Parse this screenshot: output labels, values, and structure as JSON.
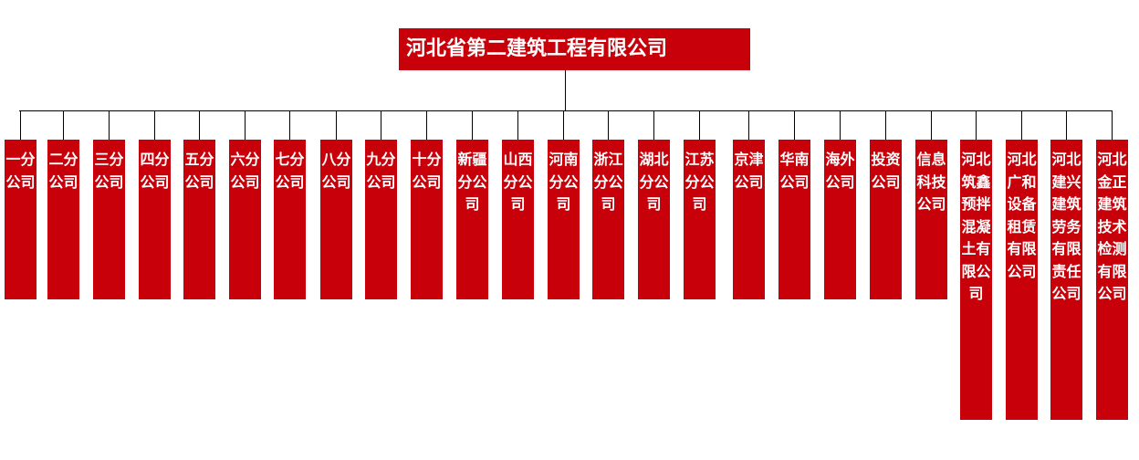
{
  "root": {
    "label": "河北省第二建筑工程有限公司",
    "color": "#c8000a"
  },
  "children": [
    {
      "label": "一分公司"
    },
    {
      "label": "二分公司"
    },
    {
      "label": "三分公司"
    },
    {
      "label": "四分公司"
    },
    {
      "label": "五分公司"
    },
    {
      "label": "六分公司"
    },
    {
      "label": "七分公司"
    },
    {
      "label": "八分公司"
    },
    {
      "label": "九分公司"
    },
    {
      "label": "十分公司"
    },
    {
      "label": "新疆分公司"
    },
    {
      "label": "山西分公司"
    },
    {
      "label": "河南分公司"
    },
    {
      "label": "浙江分公司"
    },
    {
      "label": "湖北分公司"
    },
    {
      "label": "江苏分公司"
    },
    {
      "label": "京津公司"
    },
    {
      "label": "华南公司"
    },
    {
      "label": "海外公司"
    },
    {
      "label": "投资公司"
    },
    {
      "label": "信息科技公司"
    },
    {
      "label": "河北筑鑫预拌混凝土有限公司"
    },
    {
      "label": "河北广和设备租赁有限公司"
    },
    {
      "label": "河北建兴建筑劳务有限责任公司"
    },
    {
      "label": "河北金正建筑技术检测有限公司"
    }
  ]
}
